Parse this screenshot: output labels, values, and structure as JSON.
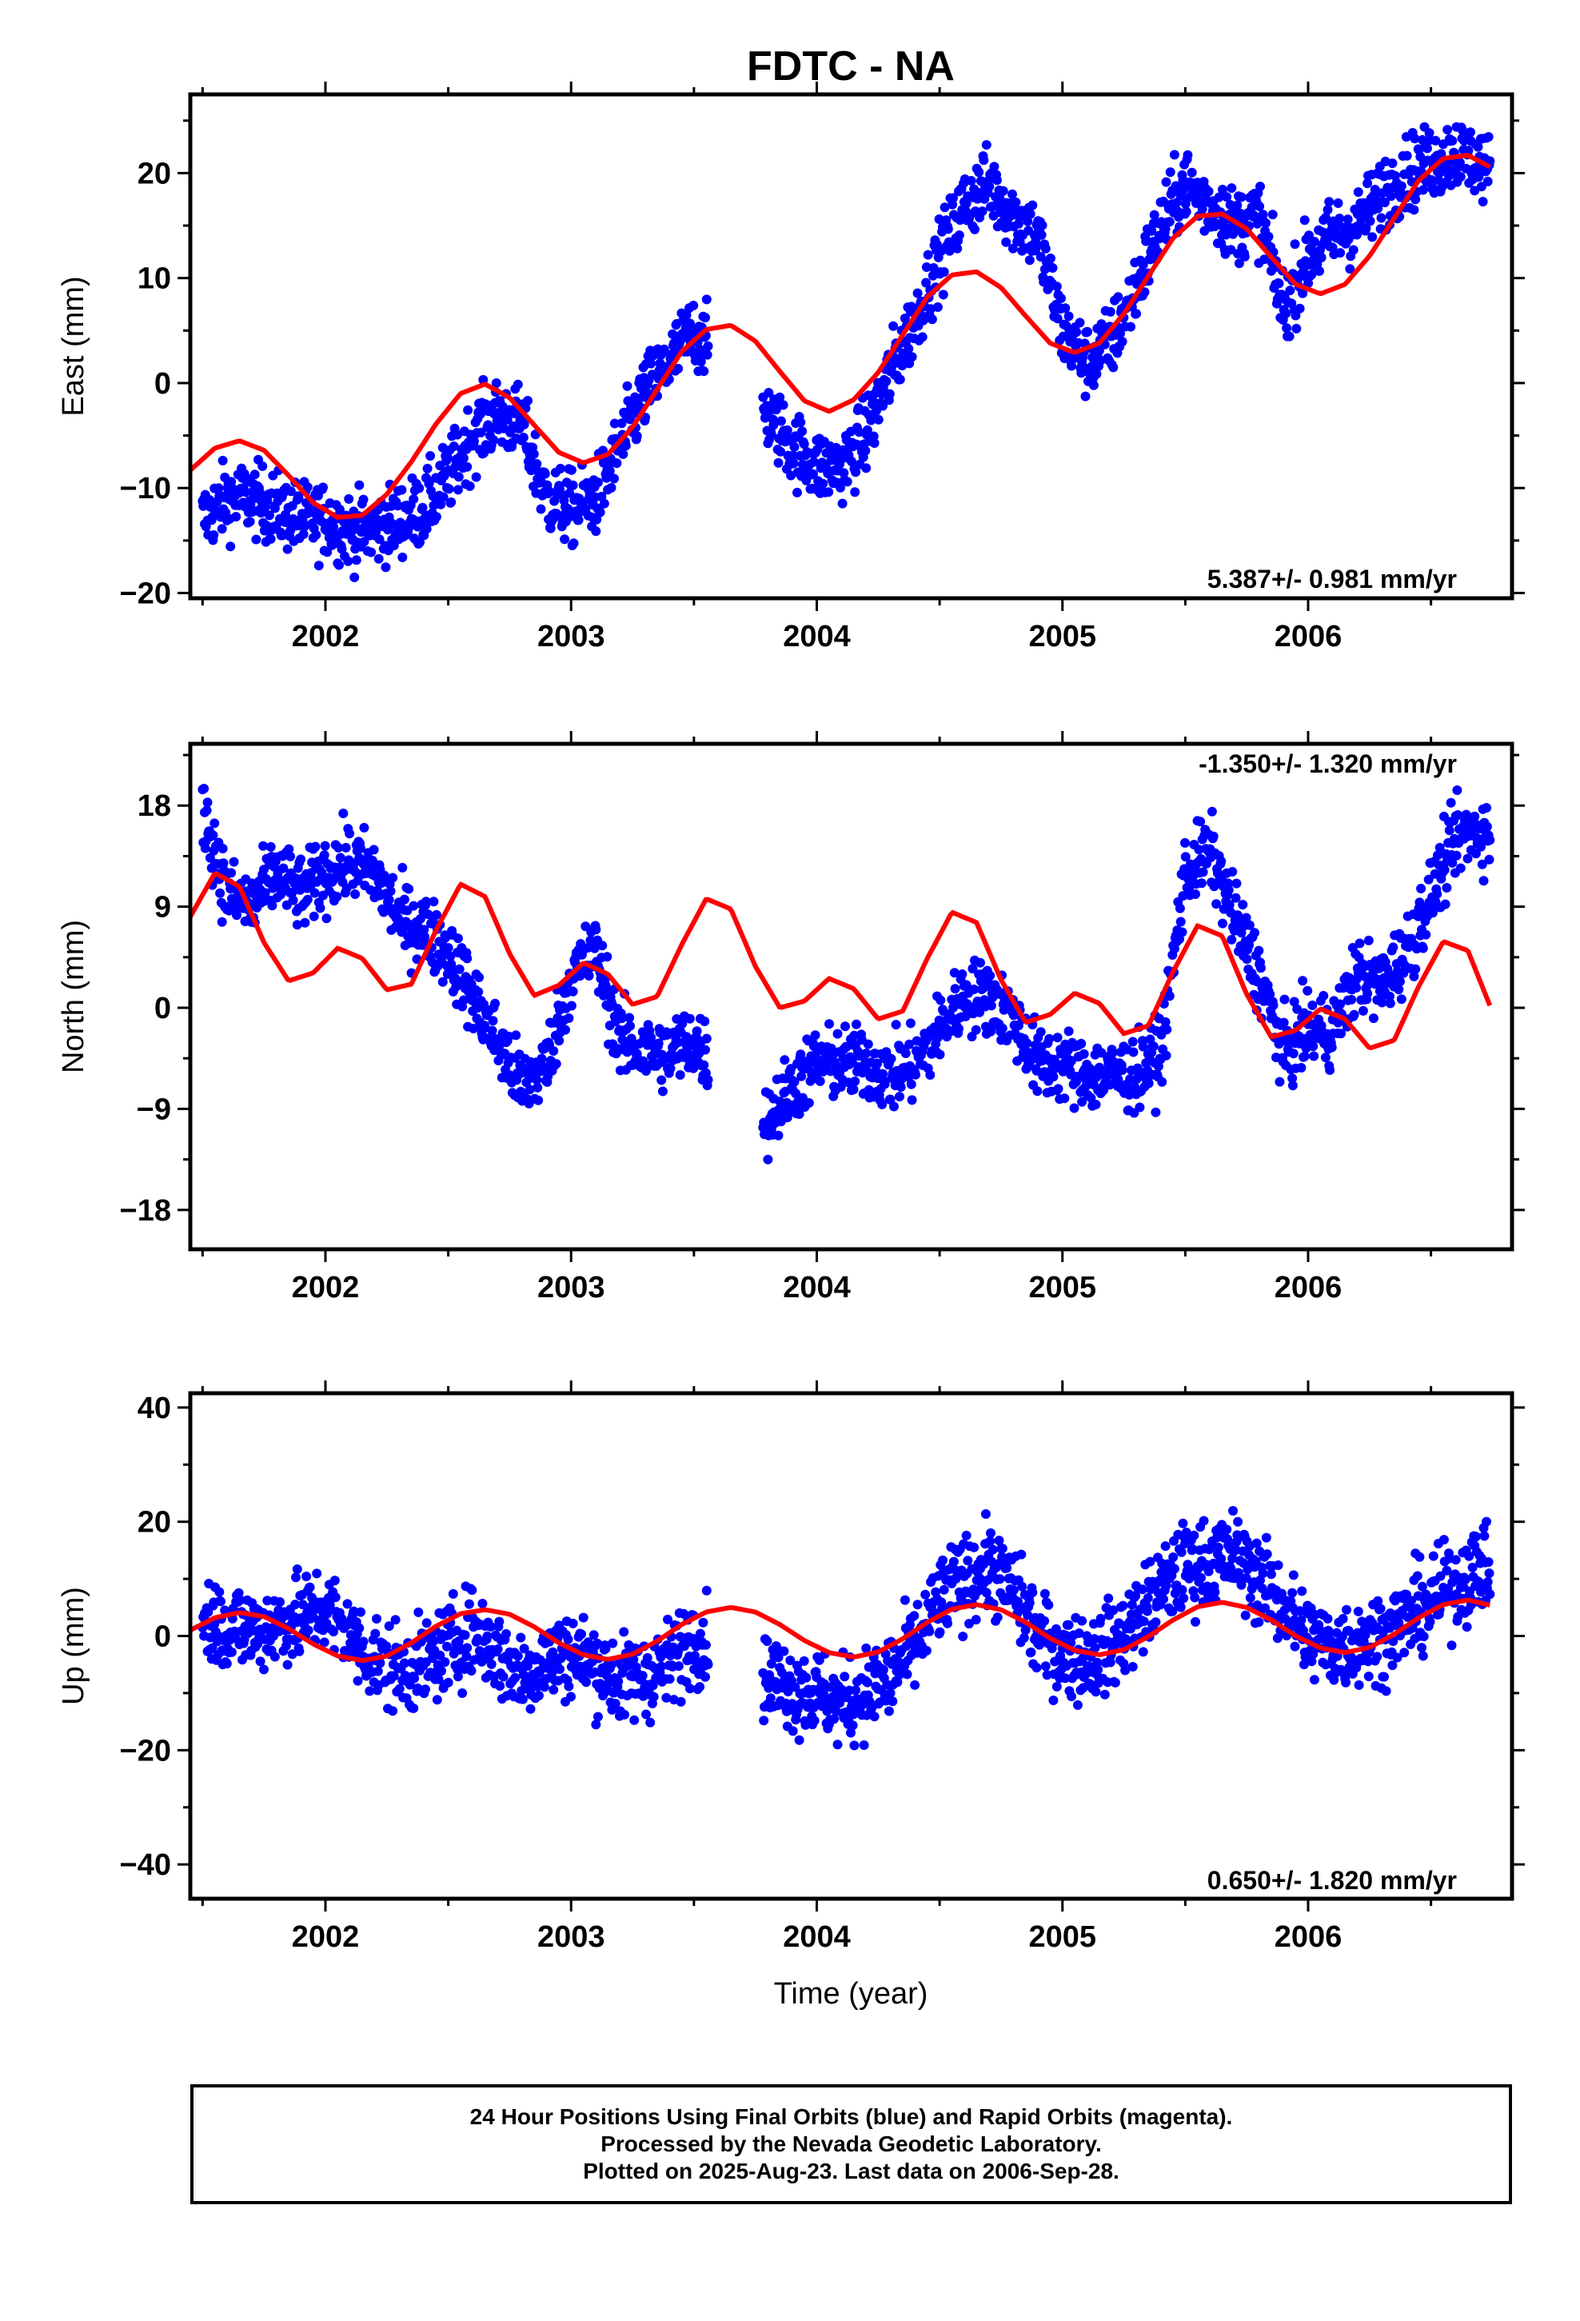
{
  "title": "FDTC - NA",
  "xlabel": "Time (year)",
  "caption": {
    "line1": "24 Hour Positions Using Final Orbits (blue) and Rapid Orbits (magenta).",
    "line2": "Processed by the Nevada Geodetic Laboratory.",
    "line3": "Plotted on 2025-Aug-23. Last data on 2006-Sep-28."
  },
  "colors": {
    "points": "#0000ff",
    "fit": "#ff0000",
    "axes": "#000000"
  },
  "chart_data": [
    {
      "type": "scatter",
      "ylabel": "East (mm)",
      "rate_label": "5.387+/- 0.981 mm/yr",
      "rate_position": "bottom-right",
      "xlim": [
        2001.45,
        2006.83
      ],
      "ylim": [
        -20.5,
        27.5
      ],
      "x_ticks": [
        2002,
        2003,
        2004,
        2005,
        2006
      ],
      "y_ticks": [
        -20,
        -10,
        0,
        10,
        20
      ],
      "grid": false,
      "series": [
        {
          "style": "points",
          "color": "#0000ff",
          "x": [
            2001.5,
            2001.6,
            2001.7,
            2001.8,
            2001.9,
            2002.0,
            2002.1,
            2002.2,
            2002.3,
            2002.4,
            2002.5,
            2002.6,
            2002.7,
            2002.8,
            2002.9,
            2003.0,
            2003.1,
            2003.2,
            2003.3,
            2003.4,
            2003.5,
            2003.8,
            2003.9,
            2004.0,
            2004.1,
            2004.2,
            2004.3,
            2004.4,
            2004.5,
            2004.6,
            2004.7,
            2004.8,
            2004.9,
            2005.0,
            2005.1,
            2005.2,
            2005.3,
            2005.4,
            2005.5,
            2005.6,
            2005.7,
            2005.8,
            2005.9,
            2006.0,
            2006.1,
            2006.2,
            2006.3,
            2006.4,
            2006.5,
            2006.6,
            2006.7,
            2006.74
          ],
          "y": [
            -13,
            -11,
            -11,
            -12,
            -13,
            -13,
            -14,
            -14,
            -13,
            -12,
            -9,
            -5,
            -3,
            -4,
            -11,
            -12,
            -11,
            -6,
            -1,
            2,
            5,
            -3,
            -6,
            -8,
            -8,
            -5,
            1,
            6,
            12,
            17,
            19,
            16,
            14,
            5,
            2,
            4,
            9,
            15,
            19,
            17,
            15,
            16,
            7,
            12,
            14,
            15,
            18,
            20,
            21,
            22,
            21,
            20
          ],
          "approx_point_count": 1850
        },
        {
          "style": "fit",
          "color": "#ff0000",
          "x": [
            2001.45,
            2001.55,
            2001.65,
            2001.75,
            2001.85,
            2001.95,
            2002.05,
            2002.15,
            2002.25,
            2002.35,
            2002.45,
            2002.55,
            2002.65,
            2002.75,
            2002.85,
            2002.95,
            2003.05,
            2003.15,
            2003.25,
            2003.35,
            2003.45,
            2003.55,
            2003.65,
            2003.75,
            2003.85,
            2003.95,
            2004.05,
            2004.15,
            2004.25,
            2004.35,
            2004.45,
            2004.55,
            2004.65,
            2004.75,
            2004.85,
            2004.95,
            2005.05,
            2005.15,
            2005.25,
            2005.35,
            2005.45,
            2005.55,
            2005.65,
            2005.75,
            2005.85,
            2005.95,
            2006.05,
            2006.15,
            2006.25,
            2006.35,
            2006.45,
            2006.55,
            2006.65,
            2006.74
          ],
          "y": [
            -8.3,
            -6.2,
            -5.5,
            -6.4,
            -8.8,
            -11.4,
            -12.8,
            -12.6,
            -10.6,
            -7.5,
            -3.9,
            -1.0,
            -0.1,
            -1.4,
            -4.0,
            -6.6,
            -7.6,
            -6.8,
            -4.2,
            -0.6,
            3.0,
            5.1,
            5.5,
            4.0,
            1.1,
            -1.7,
            -2.7,
            -1.6,
            1.0,
            4.6,
            8.2,
            10.3,
            10.6,
            9.1,
            6.4,
            3.8,
            2.9,
            3.8,
            6.6,
            10.2,
            13.8,
            15.9,
            16.1,
            14.7,
            12.0,
            9.4,
            8.5,
            9.4,
            12.1,
            15.7,
            19.3,
            21.4,
            21.7,
            20.6
          ]
        }
      ]
    },
    {
      "type": "scatter",
      "ylabel": "North (mm)",
      "rate_label": "-1.350+/- 1.320 mm/yr",
      "rate_position": "top-right",
      "xlim": [
        2001.45,
        2006.83
      ],
      "ylim": [
        -21.5,
        23.5
      ],
      "x_ticks": [
        2002,
        2003,
        2004,
        2005,
        2006
      ],
      "y_ticks": [
        -18,
        -9,
        0,
        9,
        18
      ],
      "grid": false,
      "series": [
        {
          "style": "points",
          "color": "#0000ff",
          "x": [
            2001.5,
            2001.6,
            2001.7,
            2001.8,
            2001.9,
            2002.0,
            2002.1,
            2002.2,
            2002.3,
            2002.4,
            2002.5,
            2002.6,
            2002.7,
            2002.8,
            2002.9,
            2003.0,
            2003.1,
            2003.2,
            2003.3,
            2003.4,
            2003.5,
            2003.8,
            2003.9,
            2004.0,
            2004.1,
            2004.2,
            2004.3,
            2004.4,
            2004.5,
            2004.6,
            2004.7,
            2004.8,
            2004.9,
            2005.0,
            2005.1,
            2005.2,
            2005.3,
            2005.4,
            2005.5,
            2005.6,
            2005.7,
            2005.8,
            2005.9,
            2006.0,
            2006.1,
            2006.2,
            2006.3,
            2006.4,
            2006.5,
            2006.6,
            2006.7,
            2006.74
          ],
          "y": [
            18,
            10,
            9,
            12,
            10,
            12,
            13,
            12,
            8,
            7,
            5,
            1,
            -3,
            -7,
            -5,
            3,
            5,
            -3,
            -4,
            -4,
            -3,
            -10,
            -7,
            -5,
            -5,
            -5,
            -6,
            -5,
            -2,
            1,
            1,
            -1,
            -5,
            -5,
            -6,
            -6,
            -6,
            -4,
            12,
            14,
            8,
            3,
            -4,
            -2,
            -2,
            3,
            2,
            5,
            10,
            15,
            16,
            15
          ],
          "approx_point_count": 1850
        },
        {
          "style": "fit",
          "color": "#ff0000",
          "x": [
            2001.45,
            2001.55,
            2001.65,
            2001.75,
            2001.85,
            2001.95,
            2002.05,
            2002.15,
            2002.25,
            2002.35,
            2002.45,
            2002.55,
            2002.65,
            2002.75,
            2002.85,
            2002.95,
            2003.05,
            2003.15,
            2003.25,
            2003.35,
            2003.45,
            2003.55,
            2003.65,
            2003.75,
            2003.85,
            2003.95,
            2004.05,
            2004.15,
            2004.25,
            2004.35,
            2004.45,
            2004.55,
            2004.65,
            2004.75,
            2004.85,
            2004.95,
            2005.05,
            2005.15,
            2005.25,
            2005.35,
            2005.45,
            2005.55,
            2005.65,
            2005.75,
            2005.85,
            2005.95,
            2006.05,
            2006.15,
            2006.25,
            2006.35,
            2006.45,
            2006.55,
            2006.65,
            2006.74
          ],
          "y": [
            8.1,
            12.0,
            10.8,
            5.8,
            2.4,
            3.1,
            5.3,
            4.4,
            1.6,
            2.1,
            6.9,
            11.0,
            9.9,
            4.8,
            1.1,
            2.0,
            4.0,
            3.0,
            0.3,
            1.0,
            5.6,
            9.7,
            8.8,
            3.7,
            0.0,
            0.6,
            2.6,
            1.7,
            -1.0,
            -0.3,
            4.4,
            8.5,
            7.6,
            2.5,
            -1.3,
            -0.6,
            1.3,
            0.4,
            -2.3,
            -1.6,
            3.2,
            7.3,
            6.4,
            1.2,
            -2.6,
            -2.0,
            -0.1,
            -1.0,
            -3.6,
            -2.9,
            1.9,
            5.9,
            5.1,
            0.2
          ]
        }
      ]
    },
    {
      "type": "scatter",
      "ylabel": "Up (mm)",
      "rate_label": "0.650+/- 1.820 mm/yr",
      "rate_position": "bottom-right",
      "xlim": [
        2001.45,
        2006.83
      ],
      "ylim": [
        -46,
        42.5
      ],
      "x_ticks": [
        2002,
        2003,
        2004,
        2005,
        2006
      ],
      "y_ticks": [
        -40,
        -20,
        0,
        20,
        40
      ],
      "grid": false,
      "series": [
        {
          "style": "points",
          "color": "#0000ff",
          "x": [
            2001.5,
            2001.6,
            2001.7,
            2001.8,
            2001.9,
            2002.0,
            2002.1,
            2002.2,
            2002.3,
            2002.4,
            2002.5,
            2002.6,
            2002.7,
            2002.8,
            2002.9,
            2003.0,
            2003.1,
            2003.2,
            2003.3,
            2003.4,
            2003.5,
            2003.8,
            2003.9,
            2004.0,
            2004.1,
            2004.2,
            2004.3,
            2004.4,
            2004.5,
            2004.6,
            2004.7,
            2004.8,
            2004.9,
            2005.0,
            2005.1,
            2005.2,
            2005.3,
            2005.4,
            2005.5,
            2005.6,
            2005.7,
            2005.8,
            2005.9,
            2006.0,
            2006.1,
            2006.2,
            2006.3,
            2006.4,
            2006.5,
            2006.6,
            2006.7,
            2006.74
          ],
          "y": [
            3,
            2,
            1,
            2,
            3,
            5,
            0,
            -4,
            -6,
            -5,
            -2,
            1,
            -3,
            -7,
            -4,
            -3,
            -5,
            -8,
            -7,
            -5,
            0,
            -7,
            -9,
            -10,
            -12,
            -10,
            -7,
            -2,
            6,
            10,
            12,
            8,
            0,
            -3,
            -4,
            -2,
            3,
            8,
            12,
            13,
            14,
            10,
            5,
            0,
            -2,
            -1,
            0,
            3,
            6,
            9,
            12,
            12
          ],
          "approx_point_count": 1850
        },
        {
          "style": "fit",
          "color": "#ff0000",
          "x": [
            2001.45,
            2001.55,
            2001.65,
            2001.75,
            2001.85,
            2001.95,
            2002.05,
            2002.15,
            2002.25,
            2002.35,
            2002.45,
            2002.55,
            2002.65,
            2002.75,
            2002.85,
            2002.95,
            2003.05,
            2003.15,
            2003.25,
            2003.35,
            2003.45,
            2003.55,
            2003.65,
            2003.75,
            2003.85,
            2003.95,
            2004.05,
            2004.15,
            2004.25,
            2004.35,
            2004.45,
            2004.55,
            2004.65,
            2004.75,
            2004.85,
            2004.95,
            2005.05,
            2005.15,
            2005.25,
            2005.35,
            2005.45,
            2005.55,
            2005.65,
            2005.75,
            2005.85,
            2005.95,
            2006.05,
            2006.15,
            2006.25,
            2006.35,
            2006.45,
            2006.55,
            2006.65,
            2006.74
          ],
          "y": [
            1.0,
            3.2,
            4.1,
            3.4,
            1.3,
            -1.4,
            -3.5,
            -4.3,
            -3.5,
            -1.2,
            1.7,
            3.9,
            4.6,
            3.8,
            1.6,
            -1.2,
            -3.3,
            -4.1,
            -3.2,
            -0.9,
            2.0,
            4.2,
            5.0,
            4.2,
            2.0,
            -0.8,
            -2.9,
            -3.7,
            -2.8,
            -0.5,
            2.4,
            4.7,
            5.5,
            4.6,
            2.4,
            -0.4,
            -2.5,
            -3.3,
            -2.4,
            -0.1,
            2.8,
            5.1,
            5.9,
            5.0,
            2.8,
            0.0,
            -2.1,
            -2.9,
            -2.0,
            0.3,
            3.2,
            5.5,
            6.3,
            5.4
          ]
        }
      ]
    }
  ]
}
